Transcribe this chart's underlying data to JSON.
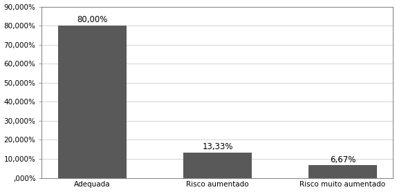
{
  "categories": [
    "Adequada",
    "Risco aumentado",
    "Risco muito aumentado"
  ],
  "values": [
    80.0,
    13.33,
    6.67
  ],
  "bar_color": "#595959",
  "bar_labels": [
    "80,00%",
    "13,33%",
    "6,67%"
  ],
  "ylim": [
    0,
    90
  ],
  "yticks": [
    0,
    10,
    20,
    30,
    40,
    50,
    60,
    70,
    80,
    90
  ],
  "ytick_labels": [
    ",000%",
    "10,000%",
    "20,000%",
    "30,000%",
    "40,000%",
    "50,000%",
    "60,000%",
    "70,000%",
    "80,000%",
    "90,000%"
  ],
  "background_color": "#ffffff",
  "border_color": "#888888",
  "bar_width": 0.55,
  "label_fontsize": 8.5,
  "tick_fontsize": 7.5,
  "grid_color": "#cccccc",
  "tick_color": "#888888"
}
